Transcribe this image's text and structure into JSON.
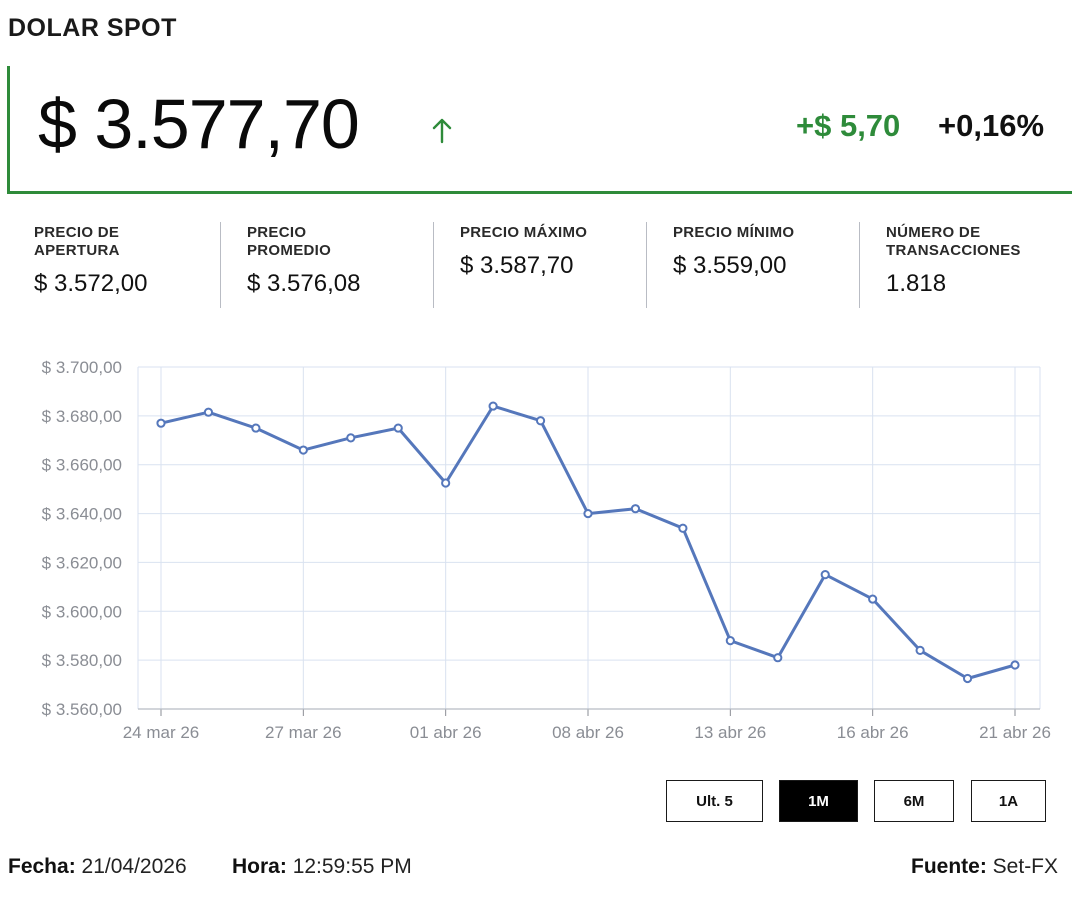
{
  "header": {
    "title": "DOLAR SPOT"
  },
  "price": {
    "current": "$ 3.577,70",
    "change_abs": "+$ 5,70",
    "change_pct": "+0,16%",
    "direction_icon": "arrow-up-icon",
    "up_color": "#2e8b3a"
  },
  "stats": [
    {
      "label": "PRECIO DE\nAPERTURA",
      "value": "$ 3.572,00"
    },
    {
      "label": "PRECIO\nPROMEDIO",
      "value": "$ 3.576,08"
    },
    {
      "label": "PRECIO MÁXIMO",
      "value": "$ 3.587,70"
    },
    {
      "label": "PRECIO MÍNIMO",
      "value": "$ 3.559,00"
    },
    {
      "label": "NÚMERO DE\nTRANSACCIONES",
      "value": "1.818"
    }
  ],
  "chart_data": {
    "type": "line",
    "title": "",
    "xlabel": "",
    "ylabel": "",
    "ylim": [
      3560,
      3700
    ],
    "yticks": [
      3560,
      3580,
      3600,
      3620,
      3640,
      3660,
      3680,
      3700
    ],
    "ytick_labels": [
      "$ 3.560,00",
      "$ 3.580,00",
      "$ 3.600,00",
      "$ 3.620,00",
      "$ 3.640,00",
      "$ 3.660,00",
      "$ 3.680,00",
      "$ 3.700,00"
    ],
    "xtick_labels": [
      "24 mar 26",
      "27 mar 26",
      "01 abr 26",
      "08 abr 26",
      "13 abr 26",
      "16 abr 26",
      "21 abr 26"
    ],
    "xtick_index": [
      0,
      3,
      6,
      9,
      12,
      15,
      18
    ],
    "x": [
      "24 mar 26",
      "25 mar 26",
      "26 mar 26",
      "27 mar 26",
      "30 mar 26",
      "31 mar 26",
      "01 abr 26",
      "06 abr 26",
      "07 abr 26",
      "08 abr 26",
      "09 abr 26",
      "10 abr 26",
      "13 abr 26",
      "14 abr 26",
      "15 abr 26",
      "16 abr 26",
      "17 abr 26",
      "20 abr 26",
      "21 abr 26"
    ],
    "series": [
      {
        "values": [
          3677,
          3681.5,
          3675,
          3666,
          3671,
          3675,
          3652.5,
          3684,
          3678,
          3640,
          3642,
          3634,
          3588,
          3581,
          3615,
          3605,
          3584,
          3572.5,
          3578
        ]
      }
    ],
    "grid": true,
    "line_color": "#5577bb",
    "grid_color": "#d9e2f0"
  },
  "range_buttons": [
    {
      "label": "Ult. 5",
      "active": false
    },
    {
      "label": "1M",
      "active": true
    },
    {
      "label": "6M",
      "active": false
    },
    {
      "label": "1A",
      "active": false
    }
  ],
  "footer": {
    "fecha_label": "Fecha:",
    "fecha_value": "21/04/2026",
    "hora_label": "Hora:",
    "hora_value": "12:59:55 PM",
    "fuente_label": "Fuente:",
    "fuente_value": "Set-FX"
  }
}
